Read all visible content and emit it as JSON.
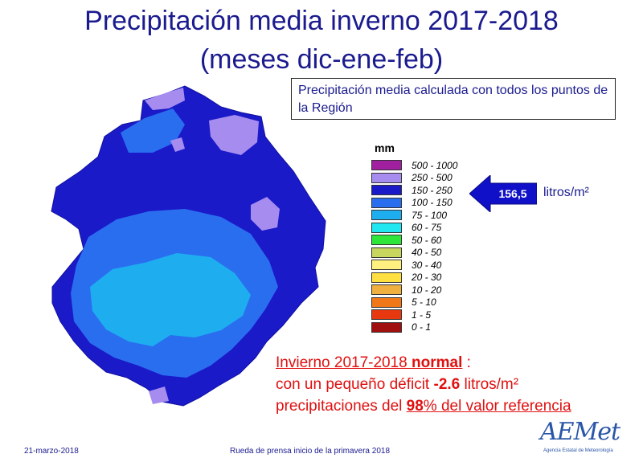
{
  "title": {
    "line1": "Precipitación media inverno 2017-2018",
    "line2": "(meses dic-ene-feb)"
  },
  "info_box": "Precipitación media calculada con todos los puntos de la Región",
  "legend": {
    "unit": "mm",
    "items": [
      {
        "label": "500 - 1000",
        "color": "#a020a0"
      },
      {
        "label": "250 - 500",
        "color": "#a78cf0"
      },
      {
        "label": "150 - 250",
        "color": "#1a1ac8"
      },
      {
        "label": "100 - 150",
        "color": "#2a6ef0"
      },
      {
        "label": "75 - 100",
        "color": "#1eaef0"
      },
      {
        "label": "60 - 75",
        "color": "#22e6f0"
      },
      {
        "label": "50 - 60",
        "color": "#2ee63a"
      },
      {
        "label": "40 - 50",
        "color": "#c8d660"
      },
      {
        "label": "30 - 40",
        "color": "#fff080"
      },
      {
        "label": "20 - 30",
        "color": "#ffe040"
      },
      {
        "label": "10 - 20",
        "color": "#f0b040"
      },
      {
        "label": "5 - 10",
        "color": "#f07818"
      },
      {
        "label": "1 - 5",
        "color": "#e83810"
      },
      {
        "label": "0 - 1",
        "color": "#a01010"
      }
    ]
  },
  "pointer": {
    "value": "156,5",
    "unit": "litros/m²",
    "color": "#1010c8"
  },
  "summary": {
    "line1_prefix": "Invierno 2017-2018 ",
    "line1_bold": "normal",
    "line1_suffix": " :",
    "line2_prefix": "con un pequeño déficit ",
    "line2_bold": "-2.6",
    "line2_suffix": " litros/m²",
    "line3_prefix": "precipitaciones del ",
    "line3_bold": "98",
    "line3_suffix": "% del valor referencia"
  },
  "footer": {
    "date": "21-marzo-2018",
    "event": "Rueda de prensa inicio de la primavera 2018",
    "logo_word": "AEMet",
    "logo_sub": "Agencia Estatal de Meteorología"
  },
  "colors": {
    "title": "#1b1b8f",
    "summary": "#e01010",
    "map_outline": "#1a1ac8",
    "map_mid": "#2a6ef0",
    "map_center": "#1eaef0",
    "map_light": "#a78cf0"
  }
}
